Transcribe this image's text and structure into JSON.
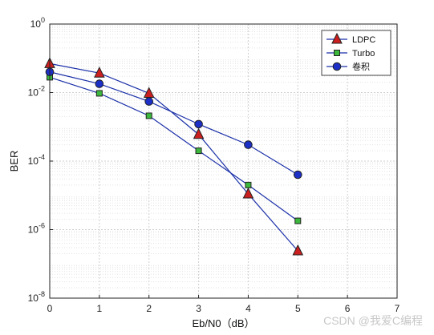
{
  "chart_data": {
    "type": "line",
    "yscale": "log",
    "xlabel": "Eb/N0（dB）",
    "ylabel": "BER",
    "xlim": [
      0,
      7
    ],
    "ylim": [
      1e-08,
      1
    ],
    "xticks": [
      "0",
      "1",
      "2",
      "3",
      "4",
      "5",
      "6",
      "7"
    ],
    "grid": true,
    "legend_position": "top-right",
    "series": [
      {
        "name": "LDPC",
        "marker": "triangle",
        "marker_color": "#cc1f1f",
        "line_color": "#1a2fa8",
        "x": [
          0,
          1,
          2,
          3,
          4,
          5
        ],
        "y": [
          0.07,
          0.037,
          0.0095,
          0.0006,
          1.1e-05,
          2.4e-07
        ]
      },
      {
        "name": "Turbo",
        "marker": "square",
        "marker_color": "#3cb83c",
        "line_color": "#1a2fa8",
        "x": [
          0,
          1,
          2,
          3,
          4,
          5
        ],
        "y": [
          0.028,
          0.0095,
          0.0021,
          0.0002,
          2e-05,
          1.8e-06
        ]
      },
      {
        "name": "卷积",
        "marker": "circle",
        "marker_color": "#1c2fc7",
        "line_color": "#1a2fa8",
        "x": [
          0,
          1,
          2,
          3,
          4,
          5
        ],
        "y": [
          0.04,
          0.018,
          0.0055,
          0.0012,
          0.0003,
          4e-05
        ]
      }
    ]
  },
  "watermark": "CSDN @我爱C编程"
}
